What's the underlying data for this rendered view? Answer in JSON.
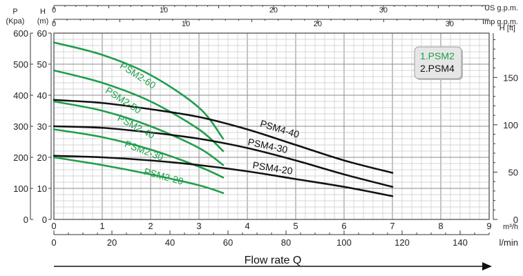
{
  "chart_data": {
    "type": "line",
    "x_axis_main": {
      "unit": "m³/h",
      "range": [
        0,
        9
      ],
      "ticks": [
        "0",
        "1",
        "2",
        "3",
        "4",
        "5",
        "6",
        "7",
        "8",
        "9"
      ]
    },
    "x_axis_lmin": {
      "unit": "l/min",
      "range": [
        0,
        150
      ],
      "ticks": [
        "0",
        "20",
        "40",
        "60",
        "80",
        "100",
        "120",
        "140"
      ]
    },
    "x_axis_us_gpm": {
      "unit": "US g.p.m.",
      "range": [
        0,
        40
      ],
      "ticks": [
        "0",
        "10",
        "20",
        "30"
      ]
    },
    "x_axis_imp_gpm": {
      "unit": "Imp g.p.m.",
      "range": [
        0,
        33
      ],
      "ticks": [
        "0",
        "10",
        "20",
        "30"
      ]
    },
    "y_axis_head_m": {
      "unit_line1": "H",
      "unit_line2": "(m)",
      "range": [
        0,
        60
      ],
      "ticks": [
        "0",
        "10",
        "20",
        "30",
        "40",
        "50",
        "60"
      ]
    },
    "y_axis_pressure": {
      "unit_line1": "P",
      "unit_line2": "(Kpa)",
      "range": [
        0,
        600
      ],
      "ticks": [
        "0",
        "100",
        "200",
        "300",
        "400",
        "500",
        "600"
      ]
    },
    "y_axis_head_ft": {
      "unit": "H [ft]",
      "range": [
        0,
        196.85
      ],
      "ticks": [
        "0",
        "50",
        "100",
        "150"
      ]
    },
    "xlabel": "Flow rate Q",
    "grid": true,
    "legend": {
      "position": "top-right",
      "items": [
        {
          "label": "1.PSM2",
          "color": "#1f9e4a"
        },
        {
          "label": "2.PSM4",
          "color": "#111111"
        }
      ]
    },
    "series": [
      {
        "name": "PSM2-60",
        "color": "#1f9e4a",
        "x": [
          0,
          1,
          2,
          3,
          3.5
        ],
        "y": [
          57,
          53,
          46.5,
          36,
          26
        ]
      },
      {
        "name": "PSM2-50",
        "color": "#1f9e4a",
        "x": [
          0,
          1,
          2,
          3,
          3.5
        ],
        "y": [
          48,
          44,
          38,
          29,
          22
        ]
      },
      {
        "name": "PSM2-40",
        "color": "#1f9e4a",
        "x": [
          0,
          1,
          2,
          3,
          3.5
        ],
        "y": [
          38,
          35,
          30,
          23,
          17.5
        ]
      },
      {
        "name": "PSM2-30",
        "color": "#1f9e4a",
        "x": [
          0,
          1,
          2,
          3,
          3.5
        ],
        "y": [
          29,
          26.5,
          22.5,
          17,
          13.5
        ]
      },
      {
        "name": "PSM2-20",
        "color": "#1f9e4a",
        "x": [
          0,
          1,
          2,
          3,
          3.5
        ],
        "y": [
          20,
          17.5,
          14.5,
          11,
          8.5
        ]
      },
      {
        "name": "PSM4-40",
        "color": "#111111",
        "x": [
          0,
          1,
          2,
          3,
          4,
          5,
          6,
          7
        ],
        "y": [
          38.5,
          37.5,
          35.5,
          33,
          29,
          24,
          19,
          15
        ]
      },
      {
        "name": "PSM4-30",
        "color": "#111111",
        "x": [
          0,
          1,
          2,
          3,
          4,
          5,
          6,
          7
        ],
        "y": [
          30,
          29.5,
          28,
          26,
          23,
          19,
          14.5,
          10.5
        ]
      },
      {
        "name": "PSM4-20",
        "color": "#111111",
        "x": [
          0,
          1,
          2,
          3,
          4,
          5,
          6,
          7
        ],
        "y": [
          20.5,
          20,
          19,
          17.5,
          15.5,
          13,
          10.5,
          7.5
        ]
      }
    ]
  }
}
